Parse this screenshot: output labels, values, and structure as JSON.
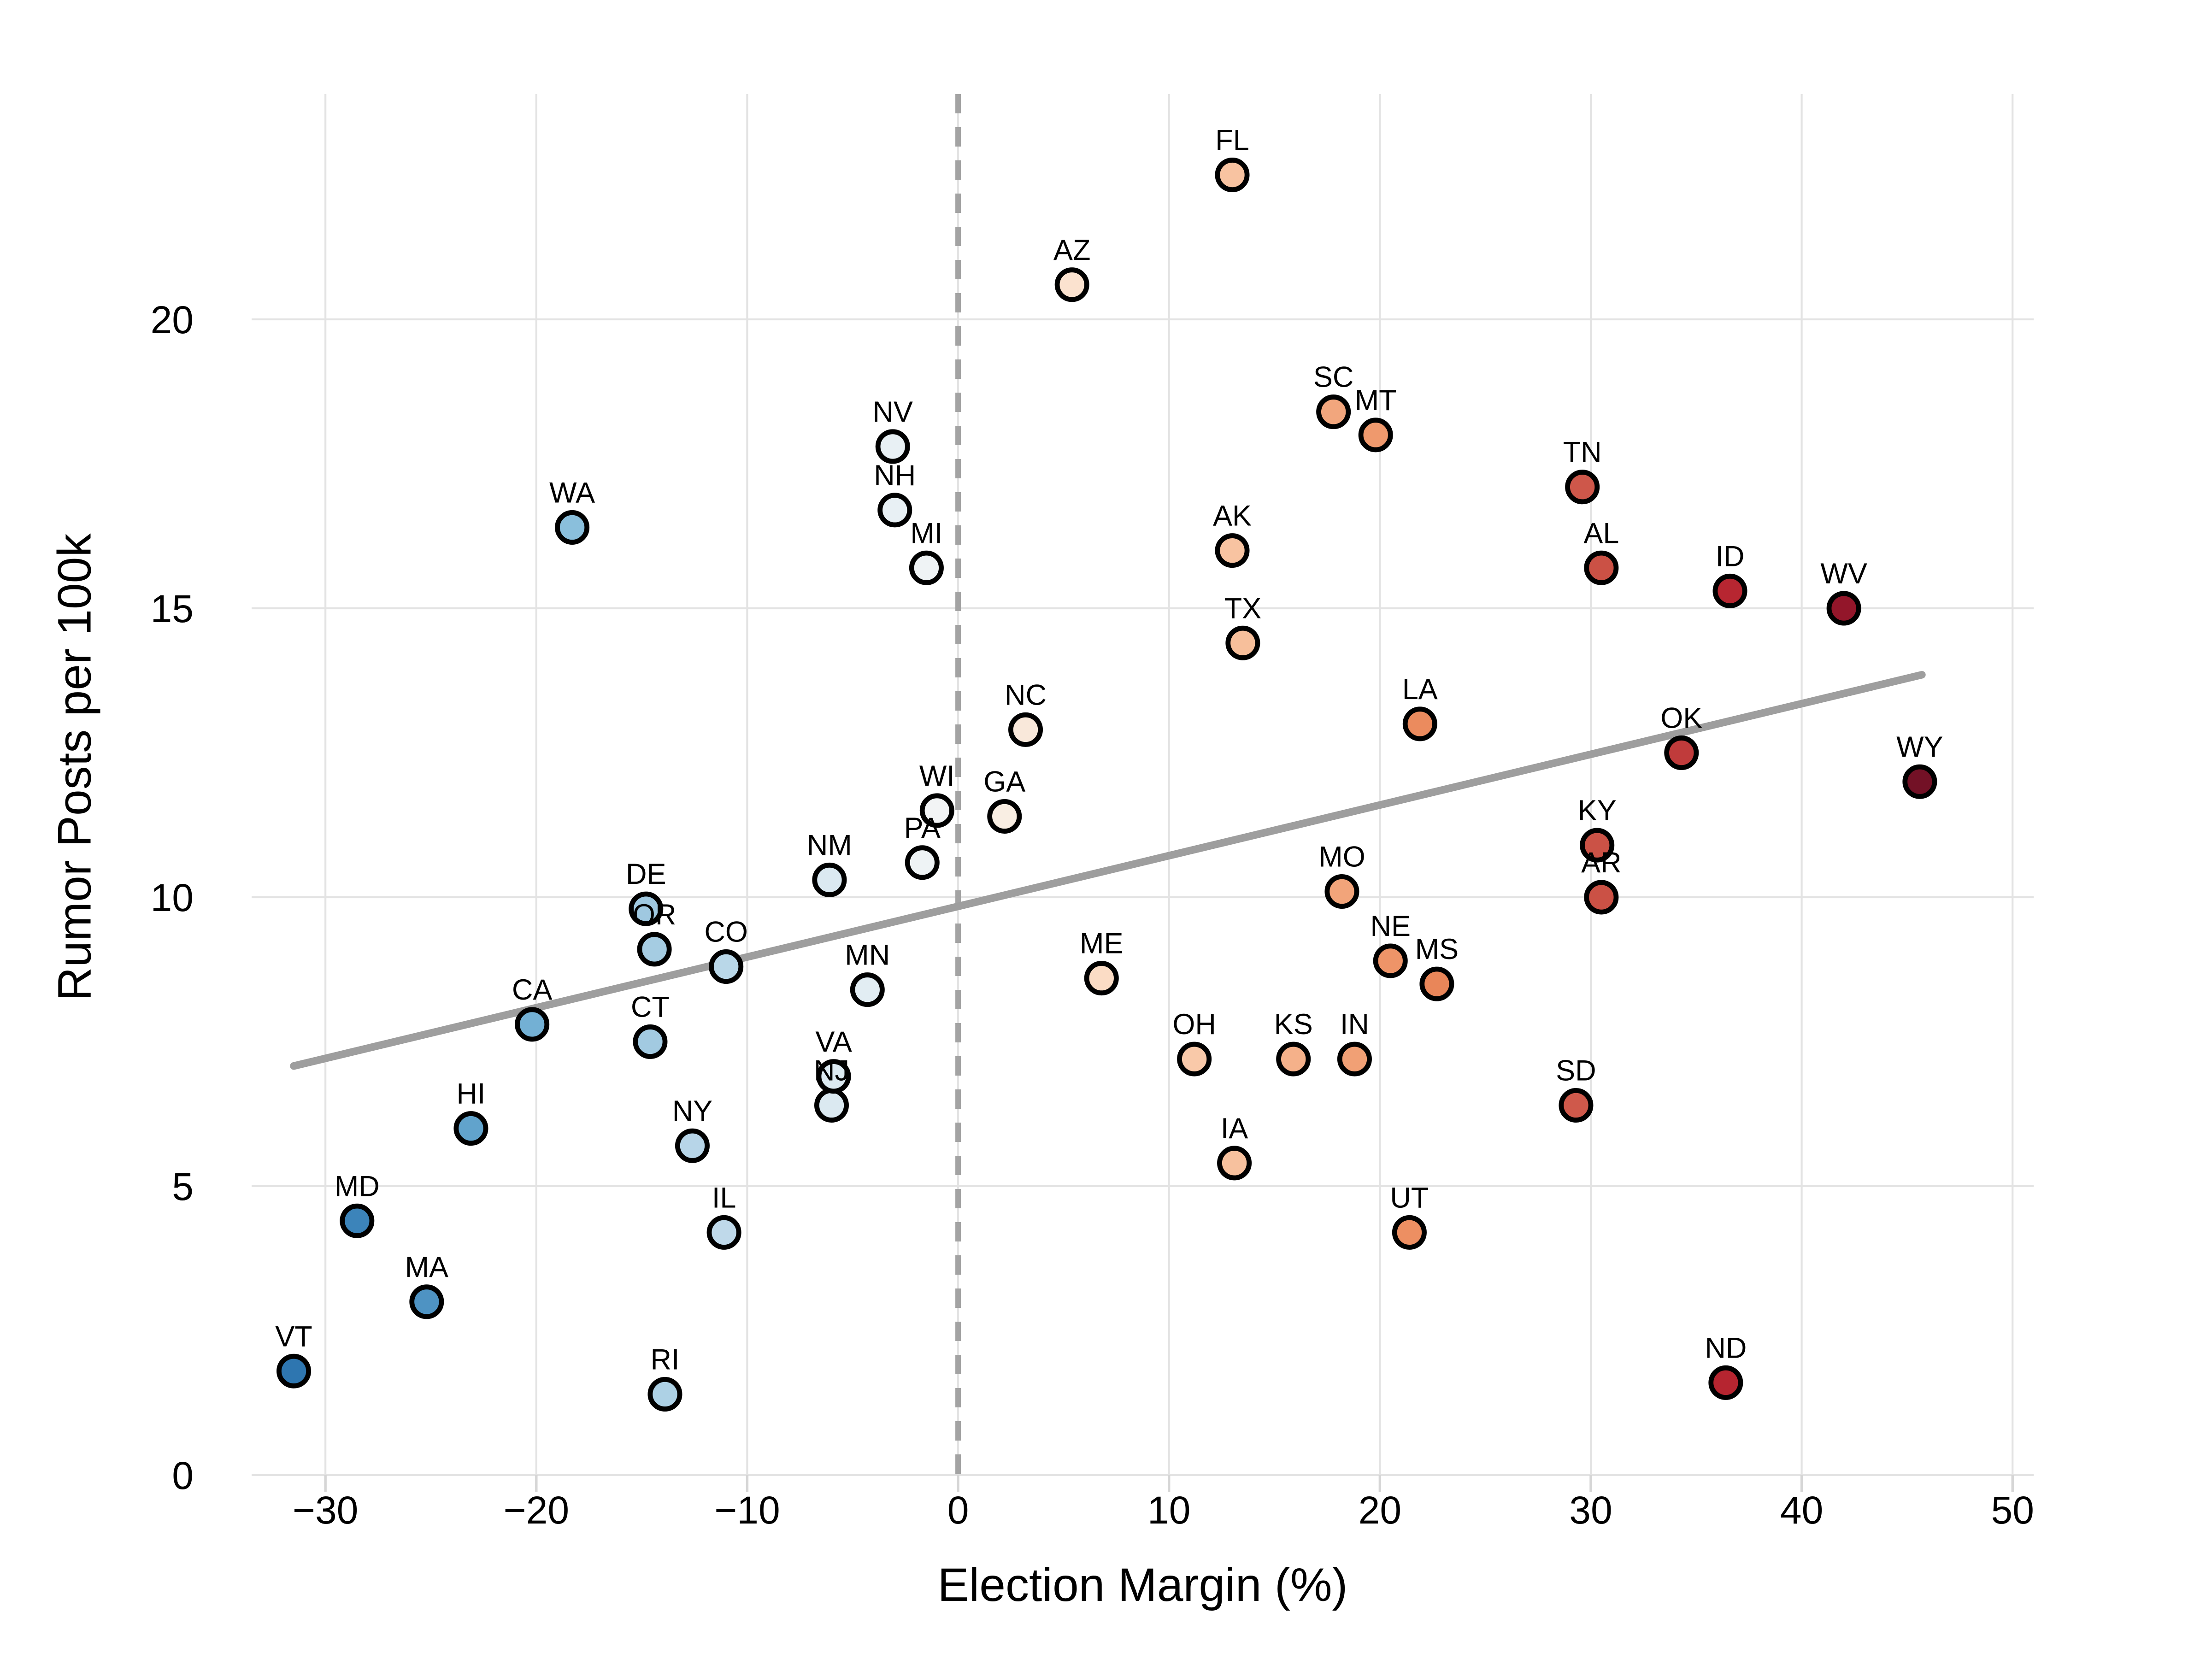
{
  "figure": {
    "background": "#ffffff"
  },
  "chart_data": {
    "type": "scatter",
    "title": "",
    "xlabel": "Election Margin (%)",
    "ylabel": "Rumor Posts per 100k",
    "xlim": [
      -33.5,
      51
    ],
    "ylim": [
      0,
      23.9
    ],
    "grid": true,
    "grid_color": "#e3e3e3",
    "tick_color": "#d6d6d6",
    "marker_outline": "#000000",
    "label_color": "#000000",
    "xticks": [
      {
        "v": -30,
        "label": "−30"
      },
      {
        "v": -20,
        "label": "−20"
      },
      {
        "v": -10,
        "label": "−10"
      },
      {
        "v": 0,
        "label": "0"
      },
      {
        "v": 10,
        "label": "10"
      },
      {
        "v": 20,
        "label": "20"
      },
      {
        "v": 30,
        "label": "30"
      },
      {
        "v": 40,
        "label": "40"
      },
      {
        "v": 50,
        "label": "50"
      }
    ],
    "yticks": [
      {
        "v": 0,
        "label": "0"
      },
      {
        "v": 5,
        "label": "5"
      },
      {
        "v": 10,
        "label": "10"
      },
      {
        "v": 15,
        "label": "15"
      },
      {
        "v": 20,
        "label": "20"
      }
    ],
    "zero_line": {
      "x": 0,
      "color": "#a3a3a3",
      "dashed": true
    },
    "trend_line": {
      "x1": -31.5,
      "y1": 7.08,
      "x2": 45.7,
      "y2": 13.85,
      "color": "#9e9e9e"
    },
    "points": [
      {
        "label": "VT",
        "x": -31.5,
        "y": 1.8,
        "color": "#2e76b0"
      },
      {
        "label": "MD",
        "x": -28.5,
        "y": 4.4,
        "color": "#3c84ba"
      },
      {
        "label": "MA",
        "x": -25.2,
        "y": 3.0,
        "color": "#4e93c3"
      },
      {
        "label": "HI",
        "x": -23.1,
        "y": 6.0,
        "color": "#61a3cc"
      },
      {
        "label": "CA",
        "x": -20.2,
        "y": 7.8,
        "color": "#73b0d4"
      },
      {
        "label": "WA",
        "x": -18.3,
        "y": 16.4,
        "color": "#8abfdc"
      },
      {
        "label": "DE",
        "x": -14.8,
        "y": 9.8,
        "color": "#9fc8e0"
      },
      {
        "label": "CT",
        "x": -14.6,
        "y": 7.5,
        "color": "#a2cae1"
      },
      {
        "label": "OR",
        "x": -14.4,
        "y": 9.1,
        "color": "#a5cce2"
      },
      {
        "label": "RI",
        "x": -13.9,
        "y": 1.4,
        "color": "#add1e5"
      },
      {
        "label": "NY",
        "x": -12.6,
        "y": 5.7,
        "color": "#b7d5e8"
      },
      {
        "label": "IL",
        "x": -11.1,
        "y": 4.2,
        "color": "#bfd9ea"
      },
      {
        "label": "CO",
        "x": -11.0,
        "y": 8.8,
        "color": "#b9d7e8"
      },
      {
        "label": "NM",
        "x": -6.1,
        "y": 10.3,
        "color": "#dbe9f1"
      },
      {
        "label": "NJ",
        "x": -6.0,
        "y": 6.4,
        "color": "#dbe9f1"
      },
      {
        "label": "VA",
        "x": -5.9,
        "y": 6.9,
        "color": "#dceaf1"
      },
      {
        "label": "MN",
        "x": -4.3,
        "y": 8.4,
        "color": "#e2edf3"
      },
      {
        "label": "NV",
        "x": -3.1,
        "y": 17.8,
        "color": "#e8f0f4"
      },
      {
        "label": "NH",
        "x": -3.0,
        "y": 16.7,
        "color": "#e8f0f4"
      },
      {
        "label": "PA",
        "x": -1.7,
        "y": 10.6,
        "color": "#eef3f5"
      },
      {
        "label": "MI",
        "x": -1.5,
        "y": 15.7,
        "color": "#eff3f5"
      },
      {
        "label": "WI",
        "x": -1.0,
        "y": 11.5,
        "color": "#f2f4f5"
      },
      {
        "label": "GA",
        "x": 2.2,
        "y": 11.4,
        "color": "#f9eee3"
      },
      {
        "label": "NC",
        "x": 3.2,
        "y": 12.9,
        "color": "#f9e8da"
      },
      {
        "label": "AZ",
        "x": 5.4,
        "y": 20.6,
        "color": "#fbe2cf"
      },
      {
        "label": "ME",
        "x": 6.8,
        "y": 8.6,
        "color": "#fbdcc5"
      },
      {
        "label": "OH",
        "x": 11.2,
        "y": 7.2,
        "color": "#f9c9a9"
      },
      {
        "label": "AK",
        "x": 13.0,
        "y": 16.0,
        "color": "#f8c3a1"
      },
      {
        "label": "FL",
        "x": 13.0,
        "y": 22.5,
        "color": "#f8c3a1"
      },
      {
        "label": "IA",
        "x": 13.1,
        "y": 5.4,
        "color": "#f7c19e"
      },
      {
        "label": "TX",
        "x": 13.5,
        "y": 14.4,
        "color": "#f7bf9b"
      },
      {
        "label": "KS",
        "x": 15.9,
        "y": 7.2,
        "color": "#f5b18a"
      },
      {
        "label": "SC",
        "x": 17.8,
        "y": 18.4,
        "color": "#f2a67d"
      },
      {
        "label": "MO",
        "x": 18.2,
        "y": 10.1,
        "color": "#f2a47a"
      },
      {
        "label": "IN",
        "x": 18.8,
        "y": 7.2,
        "color": "#f1a075"
      },
      {
        "label": "MT",
        "x": 19.8,
        "y": 18.0,
        "color": "#ef996d"
      },
      {
        "label": "NE",
        "x": 20.5,
        "y": 8.9,
        "color": "#ee9468"
      },
      {
        "label": "UT",
        "x": 21.4,
        "y": 4.2,
        "color": "#ed8f62"
      },
      {
        "label": "LA",
        "x": 21.9,
        "y": 13.0,
        "color": "#eb8b5e"
      },
      {
        "label": "MS",
        "x": 22.7,
        "y": 8.5,
        "color": "#e98659"
      },
      {
        "label": "SD",
        "x": 29.3,
        "y": 6.4,
        "color": "#cf594b"
      },
      {
        "label": "TN",
        "x": 29.6,
        "y": 17.1,
        "color": "#ce574a"
      },
      {
        "label": "KY",
        "x": 30.3,
        "y": 10.9,
        "color": "#cb5246"
      },
      {
        "label": "AL",
        "x": 30.5,
        "y": 15.7,
        "color": "#cb5145"
      },
      {
        "label": "AR",
        "x": 30.5,
        "y": 10.0,
        "color": "#cb5145"
      },
      {
        "label": "OK",
        "x": 34.3,
        "y": 12.5,
        "color": "#c03b3b"
      },
      {
        "label": "ND",
        "x": 36.4,
        "y": 1.6,
        "color": "#b62530"
      },
      {
        "label": "ID",
        "x": 36.6,
        "y": 15.3,
        "color": "#b72631"
      },
      {
        "label": "WV",
        "x": 42.0,
        "y": 15.0,
        "color": "#93162a"
      },
      {
        "label": "WY",
        "x": 45.6,
        "y": 12.0,
        "color": "#731126"
      }
    ]
  }
}
